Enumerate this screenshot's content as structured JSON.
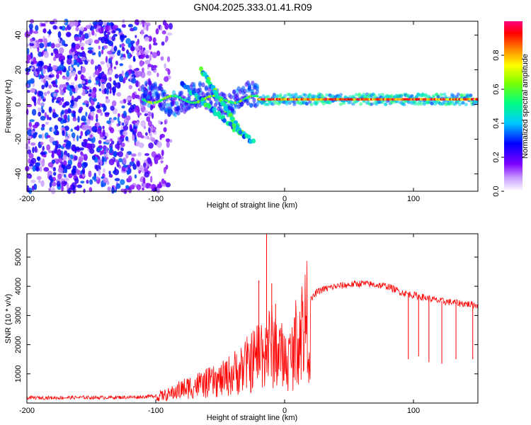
{
  "title": "GN04.2025.333.01.41.R09",
  "chart_data": [
    {
      "type": "heatmap",
      "title": "GN04.2025.333.01.41.R09",
      "xlabel": "Height of straight line (km)",
      "ylabel": "Frequency (Hz)",
      "xlim": [
        -200,
        150
      ],
      "ylim": [
        -50,
        48
      ],
      "xticks": [
        -200,
        -100,
        0,
        100
      ],
      "yticks": [
        -40,
        -20,
        0,
        20,
        40
      ],
      "colorbar": {
        "label": "Normalized spectral amplitude",
        "range": [
          0.0,
          1.0
        ],
        "ticks": [
          0.0,
          0.2,
          0.4,
          0.6,
          0.8
        ],
        "colormap": [
          "#ffffff",
          "#7f00ff",
          "#0000ff",
          "#00c8ff",
          "#00ff80",
          "#80ff00",
          "#ffff00",
          "#ff8000",
          "#ff0000",
          "#ff0080"
        ]
      },
      "features": [
        {
          "name": "noise-region",
          "x_range": [
            -200,
            -100
          ],
          "freq_range": [
            -50,
            48
          ],
          "amplitude": [
            0.05,
            0.35
          ]
        },
        {
          "name": "main-band",
          "x_range": [
            -110,
            150
          ],
          "freq_center": 3,
          "amplitude": [
            0.5,
            1.0
          ]
        },
        {
          "name": "diagonal-branch-1",
          "x_start": -65,
          "freq_start": 20,
          "x_end": -32,
          "freq_end": -18
        },
        {
          "name": "diagonal-branch-2",
          "x_start": -80,
          "freq_start": 12,
          "x_end": -25,
          "freq_end": -22
        }
      ]
    },
    {
      "type": "line",
      "xlabel": "Height of straight line (km)",
      "ylabel": "SNR (10 * v/v)",
      "xlim": [
        -200,
        150
      ],
      "ylim": [
        0,
        5800
      ],
      "xticks": [
        -200,
        -100,
        0,
        100
      ],
      "yticks": [
        1000,
        2000,
        3000,
        4000,
        5000
      ],
      "series": [
        {
          "name": "SNR",
          "color": "#ff0000",
          "x": [
            -200,
            -180,
            -160,
            -140,
            -120,
            -110,
            -100,
            -90,
            -80,
            -70,
            -60,
            -50,
            -40,
            -30,
            -25,
            -20,
            -15,
            -10,
            -5,
            0,
            5,
            10,
            15,
            20,
            25,
            30,
            40,
            50,
            60,
            70,
            80,
            90,
            100,
            110,
            120,
            130,
            140,
            150
          ],
          "values": [
            180,
            180,
            190,
            190,
            200,
            210,
            250,
            350,
            550,
            700,
            800,
            900,
            1200,
            1500,
            1700,
            2000,
            2200,
            2300,
            2100,
            1700,
            1800,
            2700,
            3100,
            3500,
            3800,
            3900,
            4000,
            4050,
            4100,
            4050,
            4000,
            3800,
            3700,
            3600,
            3500,
            3450,
            3400,
            3350
          ],
          "spikes": [
            {
              "x": -14,
              "value": 5800
            },
            {
              "x": -20,
              "value": 4200
            },
            {
              "x": -10,
              "value": 4100
            },
            {
              "x": -7,
              "value": 3400
            },
            {
              "x": 96,
              "value": 1500
            },
            {
              "x": 104,
              "value": 1600
            },
            {
              "x": 112,
              "value": 1400
            },
            {
              "x": 122,
              "value": 1350
            },
            {
              "x": 133,
              "value": 1500
            },
            {
              "x": 146,
              "value": 1500
            }
          ]
        }
      ]
    }
  ]
}
